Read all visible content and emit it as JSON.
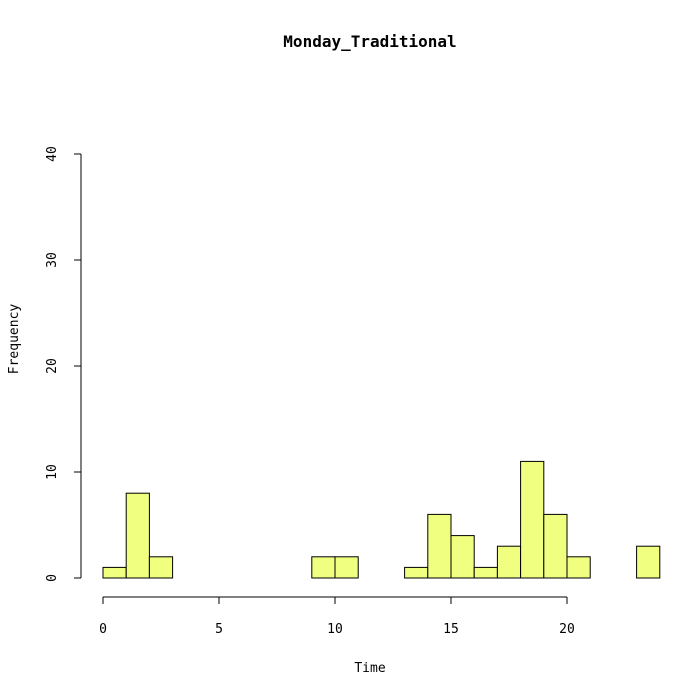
{
  "chart_data": {
    "type": "bar",
    "title": "Monday_Traditional",
    "xlabel": "Time",
    "ylabel": "Frequency",
    "bin_width": 1,
    "bins": [
      {
        "start": 0,
        "value": 1
      },
      {
        "start": 1,
        "value": 8
      },
      {
        "start": 2,
        "value": 2
      },
      {
        "start": 3,
        "value": 0
      },
      {
        "start": 4,
        "value": 0
      },
      {
        "start": 5,
        "value": 0
      },
      {
        "start": 6,
        "value": 0
      },
      {
        "start": 7,
        "value": 0
      },
      {
        "start": 8,
        "value": 0
      },
      {
        "start": 9,
        "value": 2
      },
      {
        "start": 10,
        "value": 2
      },
      {
        "start": 11,
        "value": 0
      },
      {
        "start": 12,
        "value": 0
      },
      {
        "start": 13,
        "value": 1
      },
      {
        "start": 14,
        "value": 6
      },
      {
        "start": 15,
        "value": 4
      },
      {
        "start": 16,
        "value": 1
      },
      {
        "start": 17,
        "value": 3
      },
      {
        "start": 18,
        "value": 11
      },
      {
        "start": 19,
        "value": 6
      },
      {
        "start": 20,
        "value": 2
      },
      {
        "start": 21,
        "value": 0
      },
      {
        "start": 22,
        "value": 0
      },
      {
        "start": 23,
        "value": 3
      }
    ],
    "xlim": [
      0,
      24
    ],
    "ylim": [
      0,
      40
    ],
    "xticks": [
      0,
      5,
      10,
      15,
      20
    ],
    "yticks": [
      0,
      10,
      20,
      30,
      40
    ],
    "bar_color": "#F0FF80",
    "grid": false,
    "legend": "none"
  }
}
